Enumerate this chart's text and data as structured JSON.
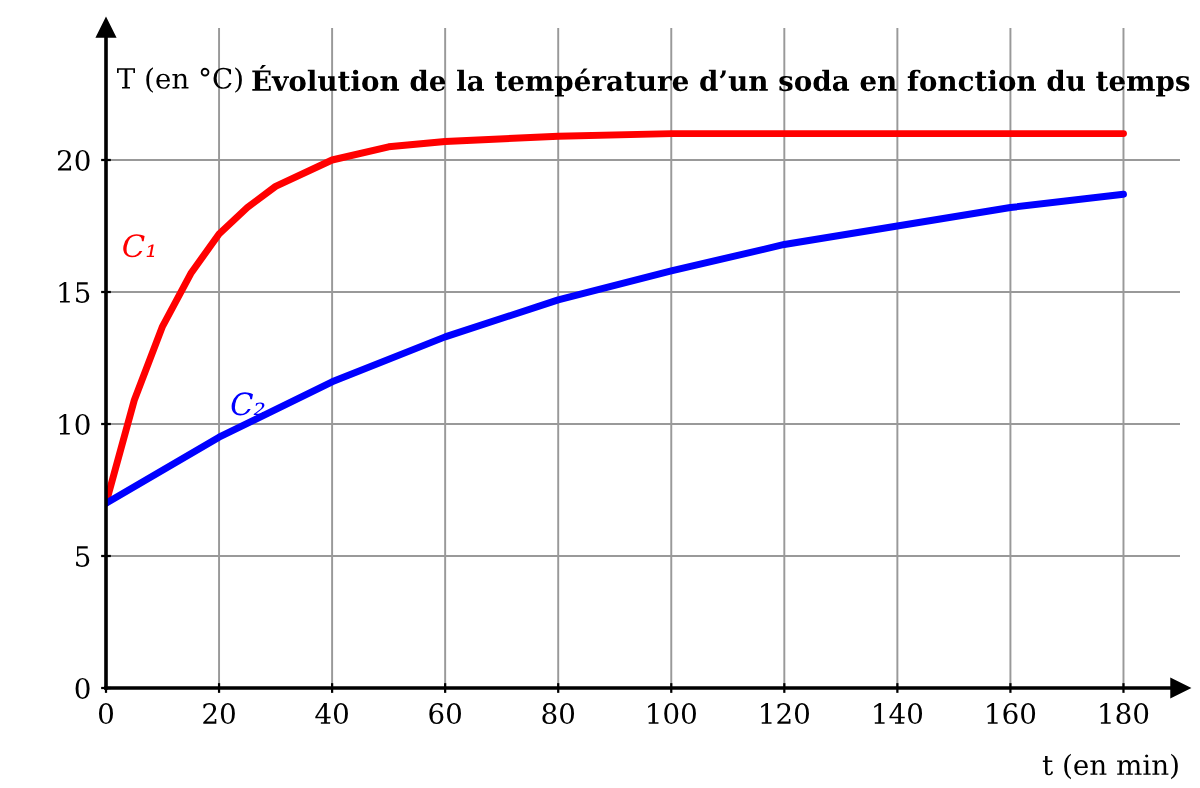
{
  "chart_data": {
    "type": "line",
    "title": "Évolution de la température d’un soda en fonction du temps",
    "xlabel": "t (en min)",
    "ylabel": "T (en °C)",
    "series": [
      {
        "name": "C₁",
        "color": "#ff0000",
        "x": [
          0,
          5,
          10,
          15,
          20,
          25,
          30,
          40,
          50,
          60,
          80,
          100,
          120,
          140,
          160,
          180
        ],
        "values": [
          7,
          10.9,
          13.7,
          15.7,
          17.2,
          18.2,
          19.0,
          20.0,
          20.5,
          20.7,
          20.9,
          21,
          21,
          21,
          21,
          21
        ]
      },
      {
        "name": "C₂",
        "color": "#0000ff",
        "x": [
          0,
          20,
          40,
          60,
          80,
          100,
          120,
          140,
          160,
          180
        ],
        "values": [
          7,
          9.5,
          11.6,
          13.3,
          14.7,
          15.8,
          16.8,
          17.5,
          18.2,
          18.7
        ]
      }
    ],
    "xlim": [
      0,
      190
    ],
    "ylim": [
      0,
      25
    ],
    "xticks": [
      0,
      20,
      40,
      60,
      80,
      100,
      120,
      140,
      160,
      180
    ],
    "yticks": [
      0,
      5,
      10,
      15,
      20
    ],
    "grid": true,
    "legend": false,
    "marker": "none",
    "line_style": "solid"
  }
}
